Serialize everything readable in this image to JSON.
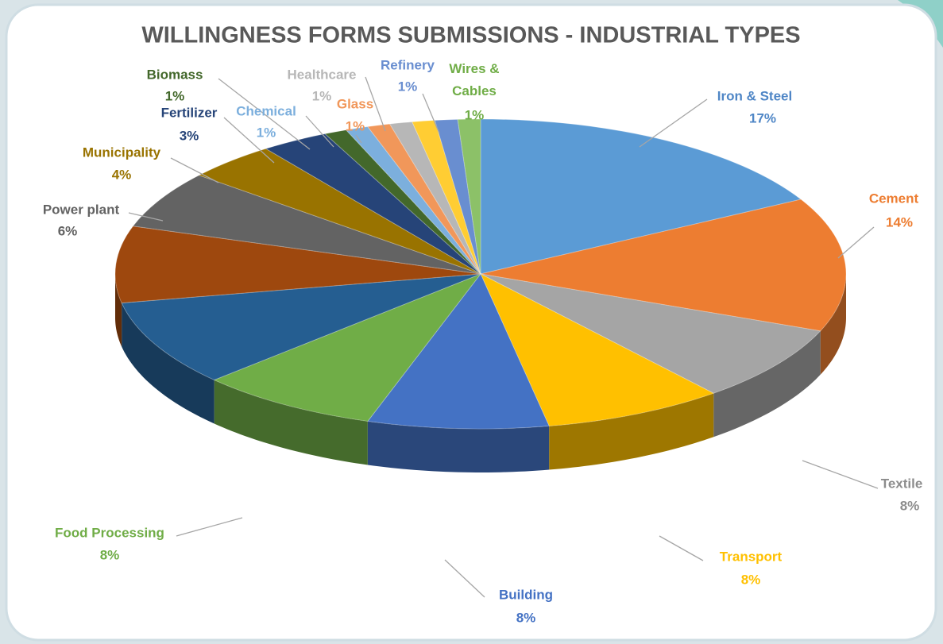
{
  "chart_data": {
    "type": "pie",
    "title": "WILLINGNESS FORMS SUBMISSIONS - INDUSTRIAL TYPES",
    "categories": [
      "Iron & Steel",
      "Cement",
      "Textile",
      "Transport",
      "Building",
      "Food Processing",
      null,
      null,
      "Power plant",
      "Municipality",
      "Fertilizer",
      "Biomass",
      "Chemical",
      "Glass",
      "Healthcare",
      null,
      "Refinery",
      "Wires & Cables"
    ],
    "values": [
      17,
      14,
      8,
      8,
      8,
      8,
      9,
      8,
      6,
      4,
      3,
      1,
      1,
      1,
      1,
      1,
      1,
      1
    ],
    "value_labels": [
      "17%",
      "14%",
      "8%",
      "8%",
      "8%",
      "8%",
      null,
      null,
      "6%",
      "4%",
      "3%",
      "1%",
      "1%",
      "1%",
      "1%",
      null,
      "1%",
      "1%"
    ],
    "colors": [
      "#5b9bd5",
      "#ed7d31",
      "#a5a5a5",
      "#ffc000",
      "#4472c4",
      "#70ad47",
      "#255e91",
      "#9e480e",
      "#636363",
      "#997300",
      "#264478",
      "#43682b",
      "#7cafdd",
      "#f1975a",
      "#b7b7b7",
      "#ffcd33",
      "#698ed0",
      "#8cc168"
    ]
  }
}
